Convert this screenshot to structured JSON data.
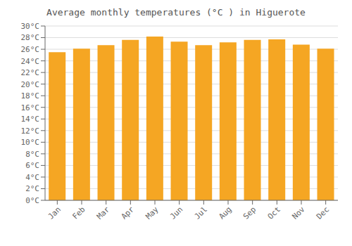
{
  "chart_data": {
    "type": "bar",
    "title": "Average monthly temperatures (°C ) in Higuerote",
    "categories": [
      "Jan",
      "Feb",
      "Mar",
      "Apr",
      "May",
      "Jun",
      "Jul",
      "Aug",
      "Sep",
      "Oct",
      "Nov",
      "Dec"
    ],
    "values": [
      25.5,
      26.1,
      26.7,
      27.6,
      28.2,
      27.3,
      26.7,
      27.2,
      27.6,
      27.7,
      26.8,
      26.1
    ],
    "color": "#F5A623",
    "ylim": [
      0,
      30
    ],
    "yticks": [
      {
        "value": 0,
        "label": "0°C"
      },
      {
        "value": 2,
        "label": "2°C"
      },
      {
        "value": 4,
        "label": "4°C"
      },
      {
        "value": 6,
        "label": "6°C"
      },
      {
        "value": 8,
        "label": "8°C"
      },
      {
        "value": 10,
        "label": "10°C"
      },
      {
        "value": 12,
        "label": "12°C"
      },
      {
        "value": 14,
        "label": "14°C"
      },
      {
        "value": 16,
        "label": "16°C"
      },
      {
        "value": 18,
        "label": "18°C"
      },
      {
        "value": 20,
        "label": "20°C"
      },
      {
        "value": 22,
        "label": "22°C"
      },
      {
        "value": 24,
        "label": "24°C"
      },
      {
        "value": 26,
        "label": "26°C"
      },
      {
        "value": 28,
        "label": "28°C"
      },
      {
        "value": 30,
        "label": "30°C"
      }
    ],
    "grid": true
  }
}
